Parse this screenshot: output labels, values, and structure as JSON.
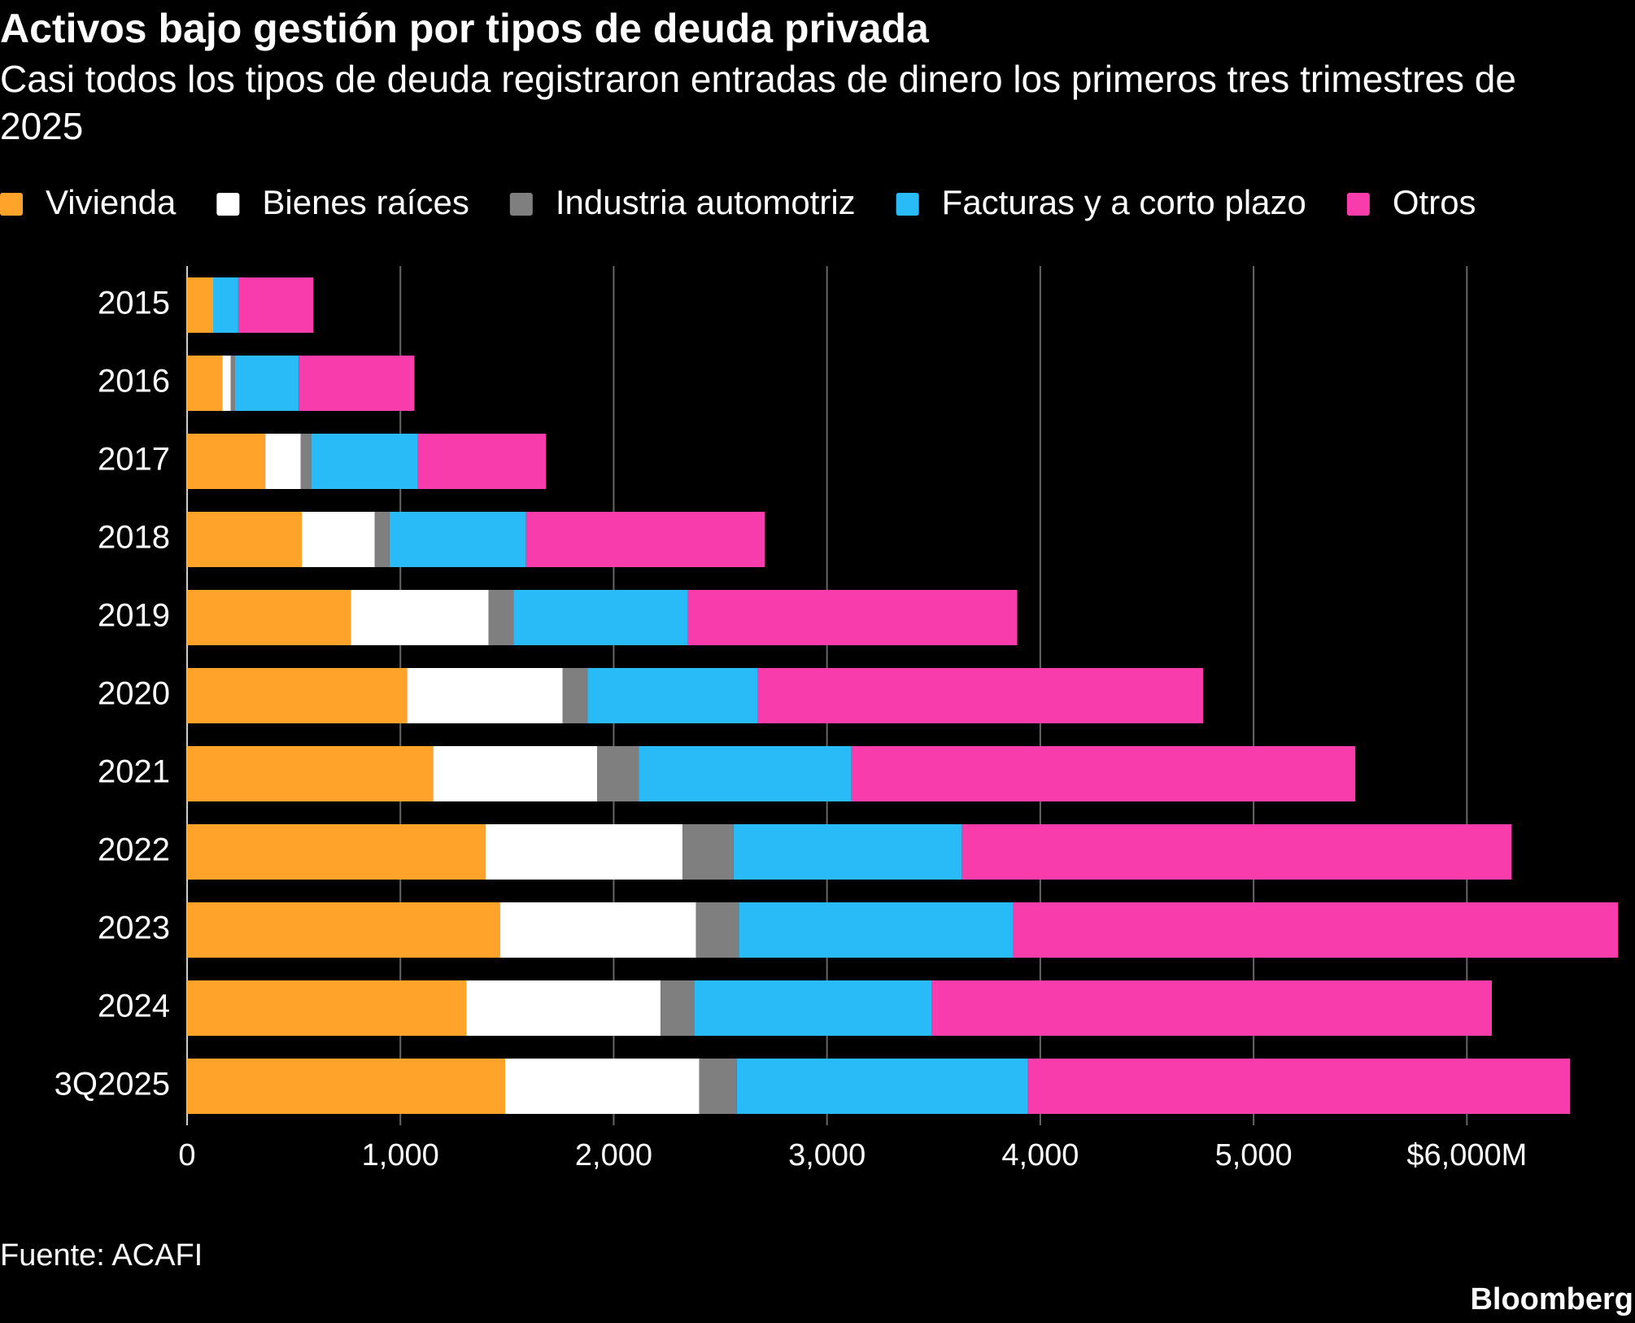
{
  "chart_data": {
    "type": "stacked-barh",
    "title": "Activos bajo gestión por tipos de deuda privada",
    "subtitle": "Casi todos los tipos de deuda registraron entradas de dinero los primeros tres trimestres de 2025",
    "source": "Fuente: ACAFI",
    "brand": "Bloomberg",
    "categories": [
      "2015",
      "2016",
      "2017",
      "2018",
      "2019",
      "2020",
      "2021",
      "2022",
      "2023",
      "2024",
      "3Q2025"
    ],
    "series": [
      {
        "name": "Vivienda",
        "color": "#ffa32b",
        "values": [
          122,
          166,
          367,
          538,
          768,
          1032,
          1154,
          1399,
          1467,
          1310,
          1491
        ]
      },
      {
        "name": "Bienes raíces",
        "color": "#ffffff",
        "values": [
          0,
          39,
          166,
          342,
          645,
          728,
          768,
          924,
          919,
          910,
          910
        ]
      },
      {
        "name": "Industria automotriz",
        "color": "#7f7f7f",
        "values": [
          0,
          20,
          49,
          69,
          118,
          118,
          195,
          239,
          201,
          157,
          176
        ]
      },
      {
        "name": "Facturas y a corto plazo",
        "color": "#29bbf7",
        "values": [
          118,
          298,
          499,
          640,
          816,
          797,
          998,
          1071,
          1286,
          1114,
          1364
        ]
      },
      {
        "name": "Otros",
        "color": "#f83cab",
        "values": [
          352,
          543,
          601,
          1120,
          1545,
          2088,
          2362,
          2577,
          2836,
          2626,
          2543
        ]
      }
    ],
    "xlim": [
      0,
      6750
    ],
    "xticks": [
      0,
      {
        "value": 1000,
        "label": "1,000"
      },
      {
        "value": 2000,
        "label": "2,000"
      },
      {
        "value": 3000,
        "label": "3,000"
      },
      {
        "value": 4000,
        "label": "4,000"
      },
      {
        "value": 5000,
        "label": "5,000"
      },
      {
        "value": 6000,
        "label": "$6,000M"
      }
    ],
    "grid": true
  }
}
